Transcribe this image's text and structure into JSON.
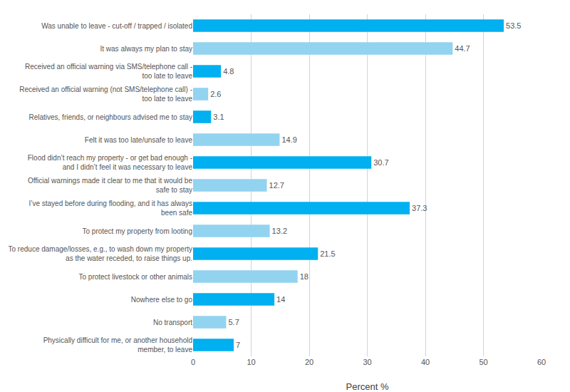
{
  "chart_data": {
    "type": "bar",
    "orientation": "horizontal",
    "xlabel": "Percent %",
    "categories": [
      "Was unable to leave - cut-off / trapped / isolated",
      "It was always my plan to stay",
      "Received an official warning via SMS/telephone call - too late to leave",
      "Received an official warning (not SMS/telephone call) - too late to leave",
      "Relatives, friends, or neighbours advised me to stay",
      "Felt it was too late/unsafe to leave",
      "Flood didn’t reach my property - or get bad enough - and I didn’t feel it was necessary to leave",
      "Official warnings made it clear to me that it would be safe to stay",
      "I’ve stayed before during flooding, and it has always been safe",
      "To protect my property from looting",
      "To reduce damage/losses, e.g., to wash down my property as the water receded, to raise things up.",
      "To protect livestock or other animals",
      "Nowhere else to go",
      "No transport",
      "Physically difficult for me, or another household member, to leave"
    ],
    "values": [
      53.5,
      44.7,
      4.8,
      2.6,
      3.1,
      14.9,
      30.7,
      12.7,
      37.3,
      13.2,
      21.5,
      18.0,
      14.0,
      5.7,
      7.0
    ],
    "colors": [
      "#00b0f0",
      "#92d3f0",
      "#00b0f0",
      "#92d3f0",
      "#00b0f0",
      "#92d3f0",
      "#00b0f0",
      "#92d3f0",
      "#00b0f0",
      "#92d3f0",
      "#00b0f0",
      "#92d3f0",
      "#00b0f0",
      "#92d3f0",
      "#00b0f0"
    ],
    "xlim": [
      0,
      60
    ],
    "xticks": [
      0,
      10,
      20,
      30,
      40,
      50,
      60
    ],
    "grid": true,
    "data_labels": true
  }
}
